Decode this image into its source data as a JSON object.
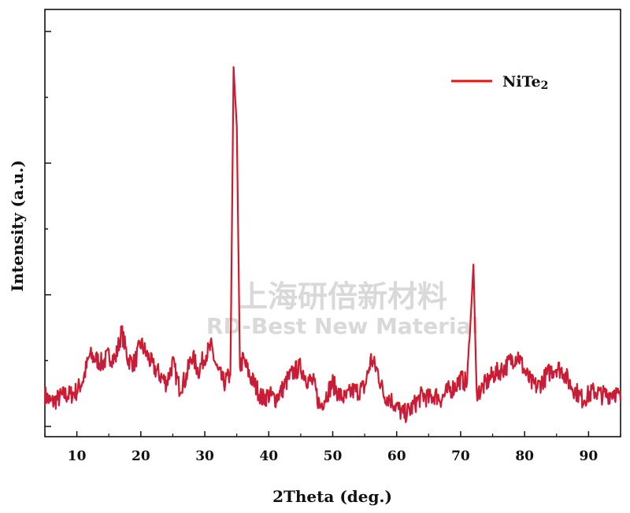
{
  "watermark": {
    "line1": "上海研倍新材料",
    "line2": "RD-Best New Material"
  },
  "chart_data": {
    "type": "line",
    "xlabel": "2Theta (deg.)",
    "ylabel": "Intensity (a.u.)",
    "xlim": [
      5,
      95
    ],
    "ylim": [
      0,
      100
    ],
    "x_ticks": [
      10,
      20,
      30,
      40,
      50,
      60,
      70,
      80,
      90
    ],
    "grid": false,
    "legend_position": "top-right",
    "series": [
      {
        "name": "NiTe2",
        "color": "#ee1111",
        "peaks": [
          {
            "x": 34.5,
            "y": 91
          },
          {
            "x": 35.0,
            "y": 76
          },
          {
            "x": 72.0,
            "y": 41
          }
        ],
        "points": [
          [
            5,
            8
          ],
          [
            6,
            6
          ],
          [
            7,
            7
          ],
          [
            8,
            8
          ],
          [
            9,
            8
          ],
          [
            10,
            9
          ],
          [
            11,
            12
          ],
          [
            12,
            18
          ],
          [
            13,
            17
          ],
          [
            14,
            16
          ],
          [
            15,
            18
          ],
          [
            16,
            17
          ],
          [
            17,
            24
          ],
          [
            18,
            17
          ],
          [
            19,
            16
          ],
          [
            20,
            21
          ],
          [
            21,
            18
          ],
          [
            22,
            15
          ],
          [
            23,
            13
          ],
          [
            24,
            11
          ],
          [
            25,
            16
          ],
          [
            26,
            10
          ],
          [
            27,
            12
          ],
          [
            28,
            18
          ],
          [
            29,
            14
          ],
          [
            30,
            18
          ],
          [
            31,
            20
          ],
          [
            32,
            14
          ],
          [
            33,
            11
          ],
          [
            34,
            13
          ],
          [
            34.5,
            91
          ],
          [
            35,
            76
          ],
          [
            35.5,
            15
          ],
          [
            36,
            17
          ],
          [
            37,
            13
          ],
          [
            38,
            10
          ],
          [
            39,
            7
          ],
          [
            40,
            8
          ],
          [
            41,
            7
          ],
          [
            42,
            9
          ],
          [
            43,
            12
          ],
          [
            44,
            14
          ],
          [
            45,
            15
          ],
          [
            46,
            12
          ],
          [
            47,
            11
          ],
          [
            48,
            5
          ],
          [
            49,
            8
          ],
          [
            50,
            11
          ],
          [
            51,
            8
          ],
          [
            52,
            7
          ],
          [
            53,
            9
          ],
          [
            54,
            9
          ],
          [
            55,
            10
          ],
          [
            56,
            17
          ],
          [
            57,
            14
          ],
          [
            58,
            8
          ],
          [
            59,
            7
          ],
          [
            60,
            5
          ],
          [
            61,
            3
          ],
          [
            62,
            4
          ],
          [
            63,
            6
          ],
          [
            64,
            8
          ],
          [
            65,
            7
          ],
          [
            66,
            8
          ],
          [
            67,
            7
          ],
          [
            68,
            9
          ],
          [
            69,
            10
          ],
          [
            70,
            12
          ],
          [
            71,
            11
          ],
          [
            71.5,
            25
          ],
          [
            72,
            41
          ],
          [
            72.5,
            9
          ],
          [
            73,
            9
          ],
          [
            74,
            11
          ],
          [
            75,
            13
          ],
          [
            76,
            14
          ],
          [
            77,
            15
          ],
          [
            78,
            17
          ],
          [
            79,
            18
          ],
          [
            80,
            14
          ],
          [
            81,
            11
          ],
          [
            82,
            10
          ],
          [
            83,
            12
          ],
          [
            84,
            14
          ],
          [
            85,
            15
          ],
          [
            86,
            14
          ],
          [
            87,
            11
          ],
          [
            88,
            9
          ],
          [
            89,
            7
          ],
          [
            90,
            8
          ],
          [
            91,
            9
          ],
          [
            92,
            8
          ],
          [
            93,
            8
          ],
          [
            94,
            9
          ],
          [
            95,
            7
          ]
        ]
      }
    ]
  }
}
